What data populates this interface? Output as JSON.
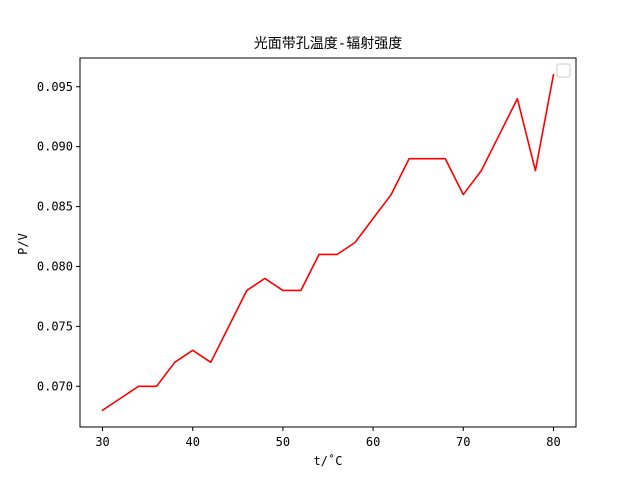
{
  "chart_data": {
    "type": "line",
    "title": "光面带孔温度-辐射强度",
    "xlabel": "t/˚C",
    "ylabel": "P/V",
    "xlim": [
      27.5,
      82.5
    ],
    "ylim": [
      0.0666,
      0.0974
    ],
    "xticks": [
      30,
      40,
      50,
      60,
      70,
      80
    ],
    "xtick_labels": [
      "30",
      "40",
      "50",
      "60",
      "70",
      "80"
    ],
    "yticks": [
      0.07,
      0.075,
      0.08,
      0.085,
      0.09,
      0.095
    ],
    "ytick_labels": [
      "0.070",
      "0.075",
      "0.080",
      "0.085",
      "0.090",
      "0.095"
    ],
    "grid": false,
    "legend": "top-right",
    "series": [
      {
        "color": "#ff0000",
        "x": [
          30,
          32,
          34,
          36,
          38,
          40,
          42,
          44,
          46,
          48,
          50,
          52,
          54,
          56,
          58,
          60,
          62,
          64,
          66,
          68,
          70,
          72,
          74,
          76,
          78,
          80
        ],
        "y": [
          0.068,
          0.069,
          0.07,
          0.07,
          0.072,
          0.073,
          0.072,
          0.075,
          0.078,
          0.079,
          0.078,
          0.078,
          0.081,
          0.081,
          0.082,
          0.084,
          0.086,
          0.089,
          0.089,
          0.089,
          0.086,
          0.088,
          0.091,
          0.094,
          0.088,
          0.096
        ]
      }
    ]
  }
}
